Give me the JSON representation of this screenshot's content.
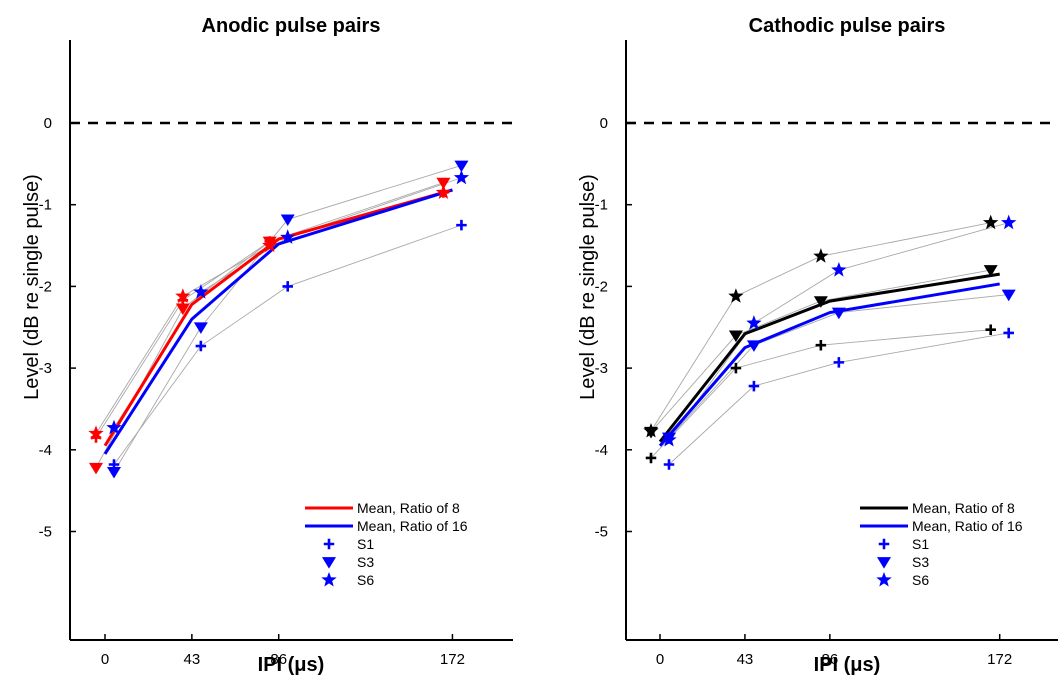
{
  "chart_data": [
    {
      "type": "line",
      "title": "Anodic pulse pairs",
      "xlabel": "IPI (μs)",
      "ylabel": "Level (dB re single pulse)",
      "x_ticks": [
        0,
        43,
        86,
        172
      ],
      "x_tick_labels": [
        "0",
        "43",
        "86",
        "172"
      ],
      "xlim": [
        -15,
        200
      ],
      "ylim": [
        -5.8,
        1.0
      ],
      "y_ticks": [
        0,
        -1,
        -2,
        -3,
        -4,
        -5
      ],
      "y_tick_labels": [
        "0",
        "-1",
        "-2",
        "-3",
        "-4",
        "-5"
      ],
      "reference_line": {
        "y": 0,
        "style": "dashed"
      },
      "legend_position": "bottom-right",
      "legend": [
        "Mean, Ratio of 8",
        "Mean, Ratio of 16",
        "S1",
        "S3",
        "S6"
      ],
      "series": [
        {
          "name": "Mean, Ratio of 8",
          "kind": "mean",
          "color": "#ff0000",
          "x": [
            0,
            43,
            86,
            172
          ],
          "y": [
            -3.95,
            -2.22,
            -1.42,
            -0.82
          ]
        },
        {
          "name": "Mean, Ratio of 16",
          "kind": "mean",
          "color": "#0000ff",
          "x": [
            0,
            43,
            86,
            172
          ],
          "y": [
            -4.05,
            -2.4,
            -1.48,
            -0.82
          ]
        },
        {
          "name": "S1",
          "ratio": 8,
          "marker": "plus",
          "color": "#ff0000",
          "x": [
            0,
            43,
            86,
            172
          ],
          "y": [
            -3.85,
            -2.17,
            -1.45,
            -0.85
          ]
        },
        {
          "name": "S3",
          "ratio": 8,
          "marker": "triangle",
          "color": "#ff0000",
          "x": [
            0,
            43,
            86,
            172
          ],
          "y": [
            -4.22,
            -2.27,
            -1.45,
            -0.73
          ]
        },
        {
          "name": "S6",
          "ratio": 8,
          "marker": "star",
          "color": "#ff0000",
          "x": [
            0,
            43,
            86,
            172
          ],
          "y": [
            -3.8,
            -2.12,
            -1.5,
            -0.85
          ]
        },
        {
          "name": "S1",
          "ratio": 16,
          "marker": "plus",
          "color": "#0000ff",
          "x": [
            0,
            43,
            86,
            172
          ],
          "y": [
            -4.18,
            -2.73,
            -2.0,
            -1.25
          ]
        },
        {
          "name": "S3",
          "ratio": 16,
          "marker": "triangle",
          "color": "#0000ff",
          "x": [
            0,
            43,
            86,
            172
          ],
          "y": [
            -4.27,
            -2.5,
            -1.18,
            -0.52
          ]
        },
        {
          "name": "S6",
          "ratio": 16,
          "marker": "star",
          "color": "#0000ff",
          "x": [
            0,
            43,
            86,
            172
          ],
          "y": [
            -3.73,
            -2.07,
            -1.4,
            -0.67
          ]
        }
      ]
    },
    {
      "type": "line",
      "title": "Cathodic pulse pairs",
      "xlabel": "IPI (μs)",
      "ylabel": "Level (dB re single pulse)",
      "x_ticks": [
        0,
        43,
        86,
        172
      ],
      "x_tick_labels": [
        "0",
        "43",
        "86",
        "172"
      ],
      "xlim": [
        -15,
        200
      ],
      "ylim": [
        -5.8,
        1.0
      ],
      "y_ticks": [
        0,
        -1,
        -2,
        -3,
        -4,
        -5
      ],
      "y_tick_labels": [
        "0",
        "-1",
        "-2",
        "-3",
        "-4",
        "-5"
      ],
      "reference_line": {
        "y": 0,
        "style": "dashed"
      },
      "legend_position": "bottom-right",
      "legend": [
        "Mean, Ratio of 8",
        "Mean, Ratio of 16",
        "S1",
        "S3",
        "S6"
      ],
      "series": [
        {
          "name": "Mean, Ratio of 8",
          "kind": "mean",
          "color": "#000000",
          "x": [
            0,
            43,
            86,
            172
          ],
          "y": [
            -3.9,
            -2.58,
            -2.18,
            -1.85
          ]
        },
        {
          "name": "Mean, Ratio of 16",
          "kind": "mean",
          "color": "#0000ff",
          "x": [
            0,
            43,
            86,
            172
          ],
          "y": [
            -3.95,
            -2.75,
            -2.32,
            -1.97
          ]
        },
        {
          "name": "S1",
          "ratio": 8,
          "marker": "plus",
          "color": "#000000",
          "x": [
            0,
            43,
            86,
            172
          ],
          "y": [
            -4.1,
            -3.0,
            -2.72,
            -2.53
          ]
        },
        {
          "name": "S3",
          "ratio": 8,
          "marker": "triangle",
          "color": "#000000",
          "x": [
            0,
            43,
            86,
            172
          ],
          "y": [
            -3.78,
            -2.6,
            -2.18,
            -1.8
          ]
        },
        {
          "name": "S6",
          "ratio": 8,
          "marker": "star",
          "color": "#000000",
          "x": [
            0,
            43,
            86,
            172
          ],
          "y": [
            -3.77,
            -2.12,
            -1.63,
            -1.22
          ]
        },
        {
          "name": "S1",
          "ratio": 16,
          "marker": "plus",
          "color": "#0000ff",
          "x": [
            0,
            43,
            86,
            172
          ],
          "y": [
            -4.18,
            -3.22,
            -2.93,
            -2.57
          ]
        },
        {
          "name": "S3",
          "ratio": 16,
          "marker": "triangle",
          "color": "#0000ff",
          "x": [
            0,
            43,
            86,
            172
          ],
          "y": [
            -3.85,
            -2.72,
            -2.32,
            -2.1
          ]
        },
        {
          "name": "S6",
          "ratio": 16,
          "marker": "star",
          "color": "#0000ff",
          "x": [
            0,
            43,
            86,
            172
          ],
          "y": [
            -3.88,
            -2.45,
            -1.8,
            -1.22
          ]
        }
      ]
    }
  ]
}
